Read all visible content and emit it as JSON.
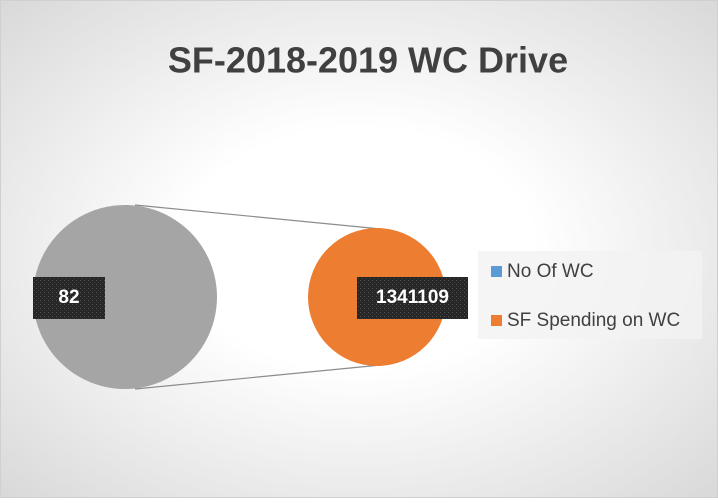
{
  "chart_data": {
    "type": "pie-of-pie",
    "title": "SF-2018-2019 WC Drive",
    "categories": [
      "No Of WC",
      "SF Spending on WC"
    ],
    "values": [
      82,
      1341109
    ],
    "colors": [
      "#5b9bd5",
      "#ed7d31"
    ],
    "other_color": "#a5a5a5",
    "legend": "right"
  }
}
